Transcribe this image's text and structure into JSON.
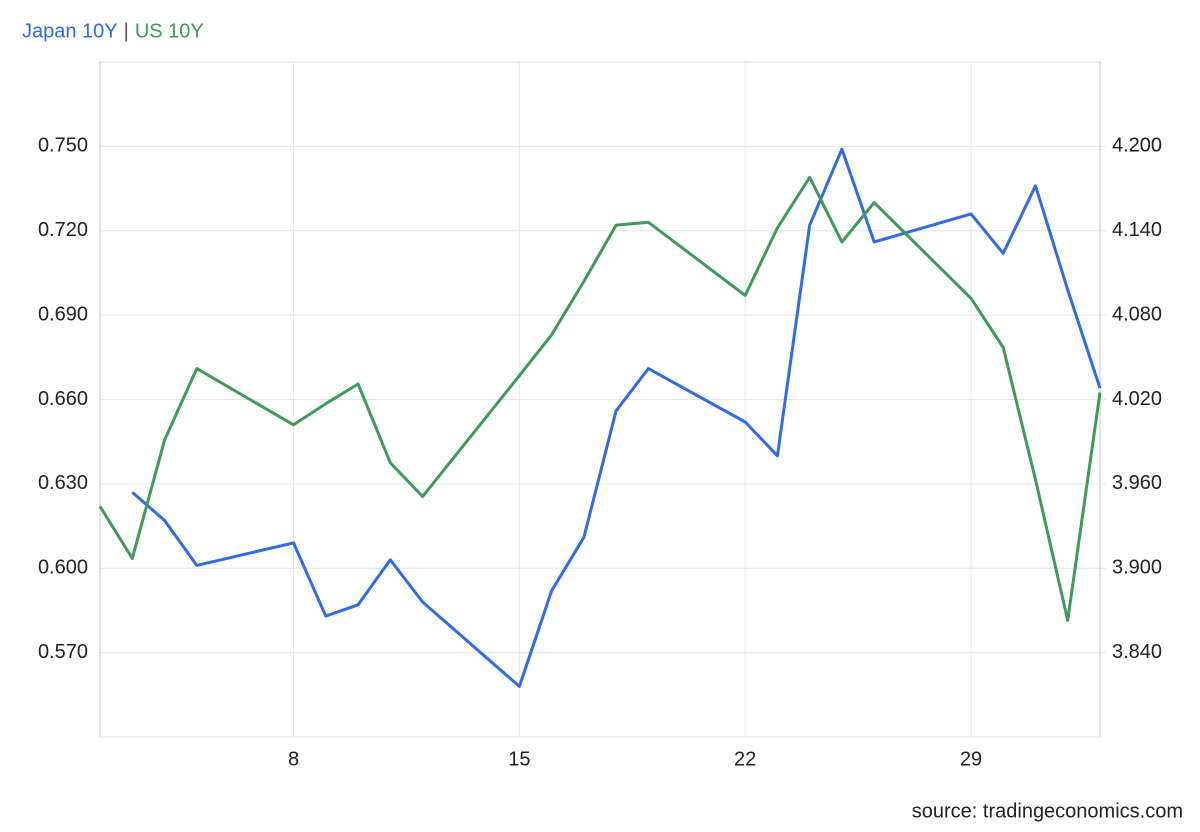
{
  "chart_data": {
    "type": "line",
    "legend_separator": "|",
    "source": "source: tradingeconomics.com",
    "x": [
      2,
      3,
      4,
      5,
      8,
      9,
      10,
      11,
      12,
      15,
      16,
      17,
      18,
      19,
      22,
      23,
      24,
      25,
      26,
      29,
      30,
      31,
      32,
      33
    ],
    "xlim": [
      2,
      33
    ],
    "xticks": [
      8,
      15,
      22,
      29
    ],
    "ylim": [
      0.54,
      0.78
    ],
    "yticks": [
      {
        "value": 0.57,
        "label": "0.570"
      },
      {
        "value": 0.6,
        "label": "0.600"
      },
      {
        "value": 0.63,
        "label": "0.630"
      },
      {
        "value": 0.66,
        "label": "0.660"
      },
      {
        "value": 0.69,
        "label": "0.690"
      },
      {
        "value": 0.72,
        "label": "0.720"
      },
      {
        "value": 0.75,
        "label": "0.750"
      }
    ],
    "y2lim": [
      3.78,
      4.26
    ],
    "y2ticks": [
      {
        "value": 3.84,
        "label": "3.840"
      },
      {
        "value": 3.9,
        "label": "3.900"
      },
      {
        "value": 3.96,
        "label": "3.960"
      },
      {
        "value": 4.02,
        "label": "4.020"
      },
      {
        "value": 4.08,
        "label": "4.080"
      },
      {
        "value": 4.14,
        "label": "4.140"
      },
      {
        "value": 4.2,
        "label": "4.200"
      }
    ],
    "grid": true,
    "series": [
      {
        "name": "Japan 10Y",
        "color": "#2f6bea",
        "axis": "y",
        "values": [
          null,
          0.627,
          0.617,
          0.601,
          0.609,
          0.583,
          0.587,
          0.603,
          0.588,
          0.558,
          0.592,
          0.611,
          0.656,
          0.671,
          0.652,
          0.64,
          0.722,
          0.749,
          0.716,
          0.726,
          0.712,
          0.736,
          0.699,
          0.664
        ]
      },
      {
        "name": "US 10Y",
        "color": "#3f9a5c",
        "axis": "y2",
        "values": [
          3.944,
          3.907,
          3.991,
          4.042,
          4.002,
          4.017,
          4.031,
          3.975,
          3.951,
          4.037,
          4.066,
          4.104,
          4.144,
          4.146,
          4.094,
          4.142,
          4.178,
          4.132,
          4.16,
          4.092,
          4.057,
          3.963,
          3.863,
          4.025
        ]
      }
    ]
  }
}
